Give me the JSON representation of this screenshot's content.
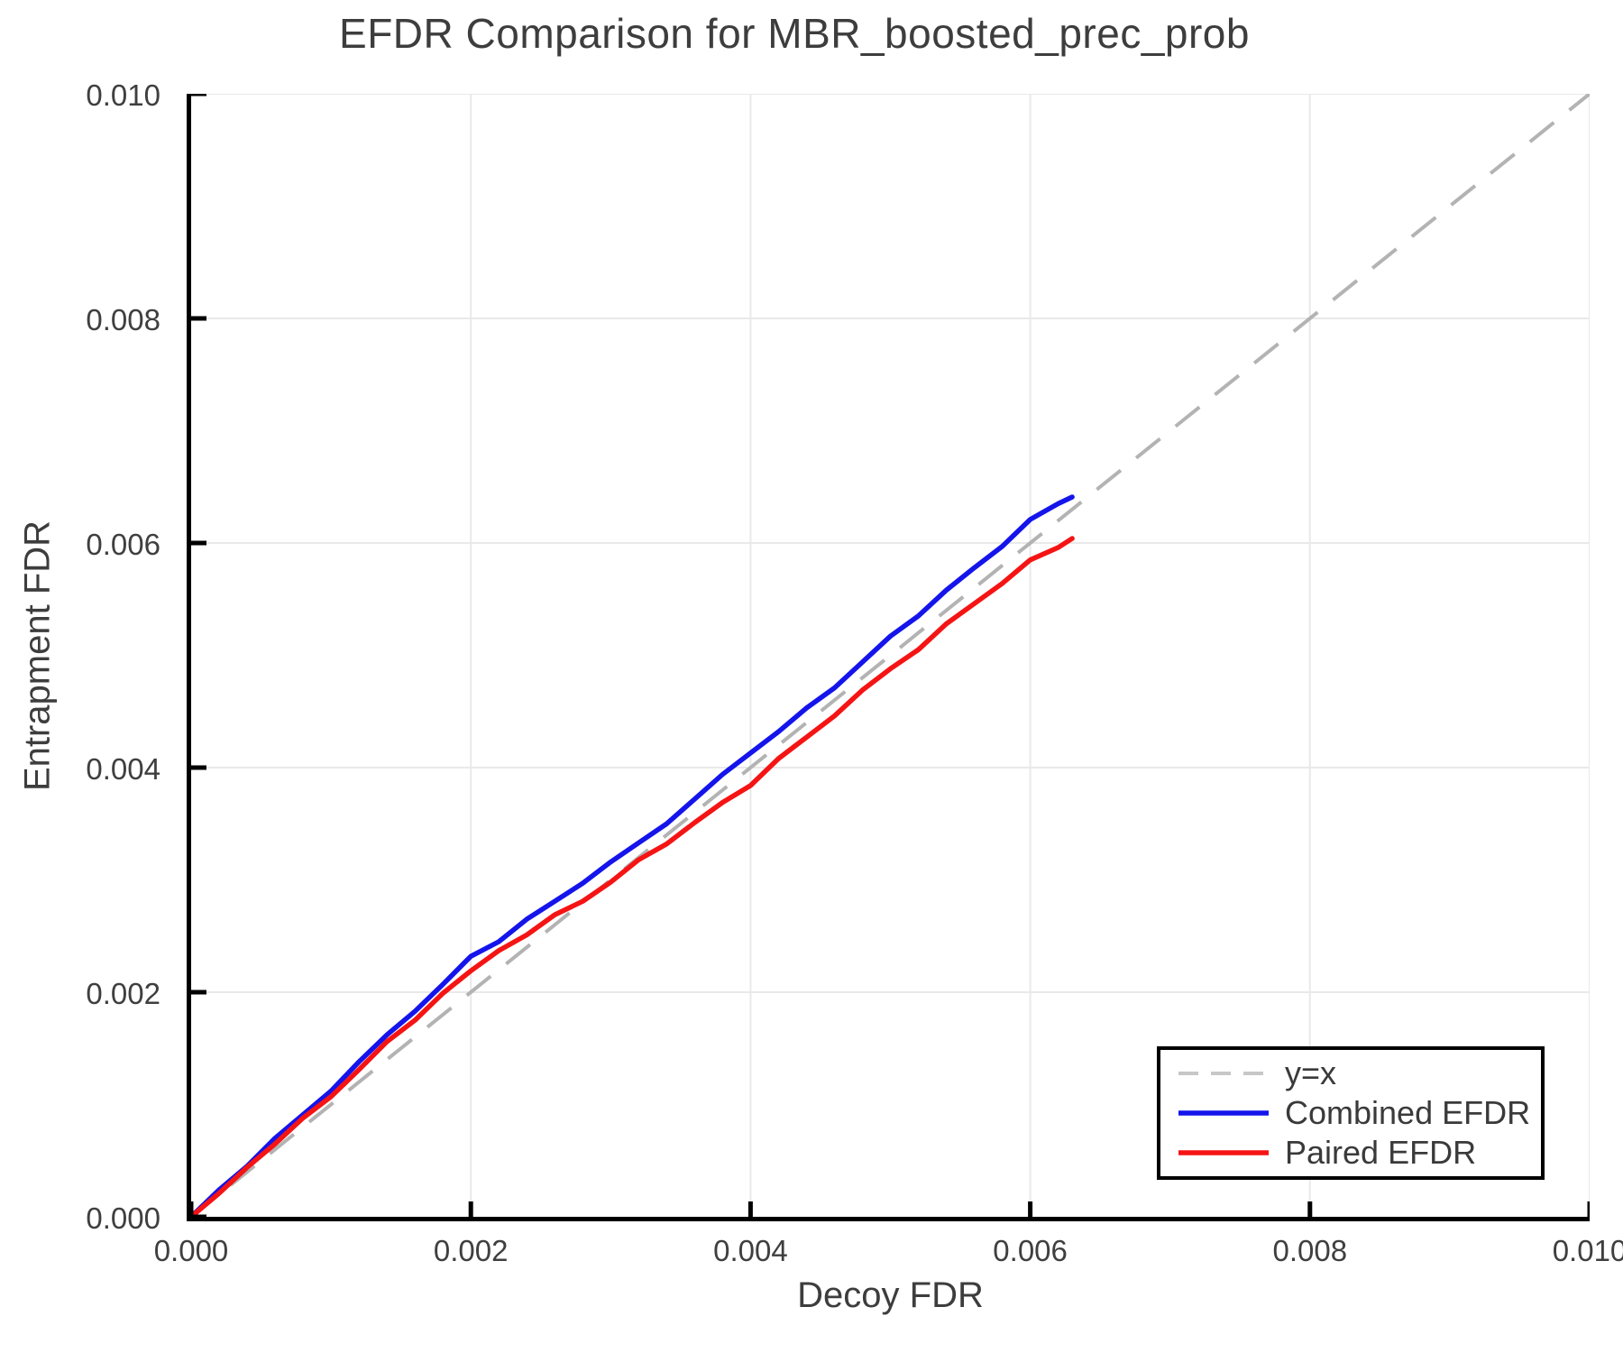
{
  "chart_data": {
    "type": "line",
    "title": "EFDR Comparison for MBR_boosted_prec_prob",
    "xlabel": "Decoy FDR",
    "ylabel": "Entrapment FDR",
    "xlim": [
      0.0,
      0.01
    ],
    "ylim": [
      0.0,
      0.01
    ],
    "grid": true,
    "x_tick_labels": [
      "0.000",
      "0.002",
      "0.004",
      "0.006",
      "0.008",
      "0.010"
    ],
    "y_tick_labels": [
      "0.000",
      "0.002",
      "0.004",
      "0.006",
      "0.008",
      "0.010"
    ],
    "x_tick_values": [
      0.0,
      0.002,
      0.004,
      0.006,
      0.008,
      0.01
    ],
    "y_tick_values": [
      0.0,
      0.002,
      0.004,
      0.006,
      0.008,
      0.01
    ],
    "reference_line": {
      "label": "y=x",
      "x": [
        0.0,
        0.01
      ],
      "y": [
        0.0,
        0.01
      ],
      "color": "#b3b3b3",
      "style": "dashed"
    },
    "series": [
      {
        "name": "Combined EFDR",
        "color": "#1414eb",
        "x": [
          0.0,
          0.0002,
          0.0004,
          0.0006,
          0.0008,
          0.001,
          0.0012,
          0.0014,
          0.0016,
          0.0018,
          0.002,
          0.0022,
          0.0024,
          0.0026,
          0.0028,
          0.003,
          0.0032,
          0.0034,
          0.0036,
          0.0038,
          0.004,
          0.0042,
          0.0044,
          0.0046,
          0.0048,
          0.005,
          0.0052,
          0.0054,
          0.0056,
          0.0058,
          0.006,
          0.0062,
          0.0063
        ],
        "y": [
          0.0,
          0.00024,
          0.00045,
          0.0007,
          0.00091,
          0.00112,
          0.00138,
          0.00162,
          0.00183,
          0.00207,
          0.00232,
          0.00245,
          0.00265,
          0.00281,
          0.00297,
          0.00316,
          0.00333,
          0.0035,
          0.00372,
          0.00394,
          0.00413,
          0.00432,
          0.00453,
          0.00471,
          0.00494,
          0.00517,
          0.00535,
          0.00558,
          0.00578,
          0.00597,
          0.00621,
          0.00635,
          0.00641
        ]
      },
      {
        "name": "Paired EFDR",
        "color": "#f51414",
        "x": [
          0.0,
          0.0002,
          0.0004,
          0.0006,
          0.0008,
          0.001,
          0.0012,
          0.0014,
          0.0016,
          0.0018,
          0.002,
          0.0022,
          0.0024,
          0.0026,
          0.0028,
          0.003,
          0.0032,
          0.0034,
          0.0036,
          0.0038,
          0.004,
          0.0042,
          0.0044,
          0.0046,
          0.0048,
          0.005,
          0.0052,
          0.0054,
          0.0056,
          0.0058,
          0.006,
          0.0062,
          0.0063
        ],
        "y": [
          0.0,
          0.00021,
          0.00044,
          0.00065,
          0.00088,
          0.00107,
          0.00131,
          0.00156,
          0.00175,
          0.00199,
          0.00219,
          0.00237,
          0.00251,
          0.00269,
          0.00281,
          0.00298,
          0.00318,
          0.00332,
          0.00351,
          0.00369,
          0.00384,
          0.00408,
          0.00427,
          0.00446,
          0.00469,
          0.00488,
          0.00505,
          0.00528,
          0.00546,
          0.00564,
          0.00585,
          0.00596,
          0.00604
        ]
      }
    ],
    "legend": {
      "position": "lower right",
      "entries": [
        {
          "label": "y=x",
          "color": "#c7c7c7",
          "dashed": true
        },
        {
          "label": "Combined EFDR",
          "color": "#1414eb",
          "dashed": false
        },
        {
          "label": "Paired EFDR",
          "color": "#f51414",
          "dashed": false
        }
      ]
    }
  },
  "colors": {
    "grid": "#e9e9e9",
    "spine": "#000000",
    "tick": "#000000",
    "text": "#3d3d3d"
  }
}
